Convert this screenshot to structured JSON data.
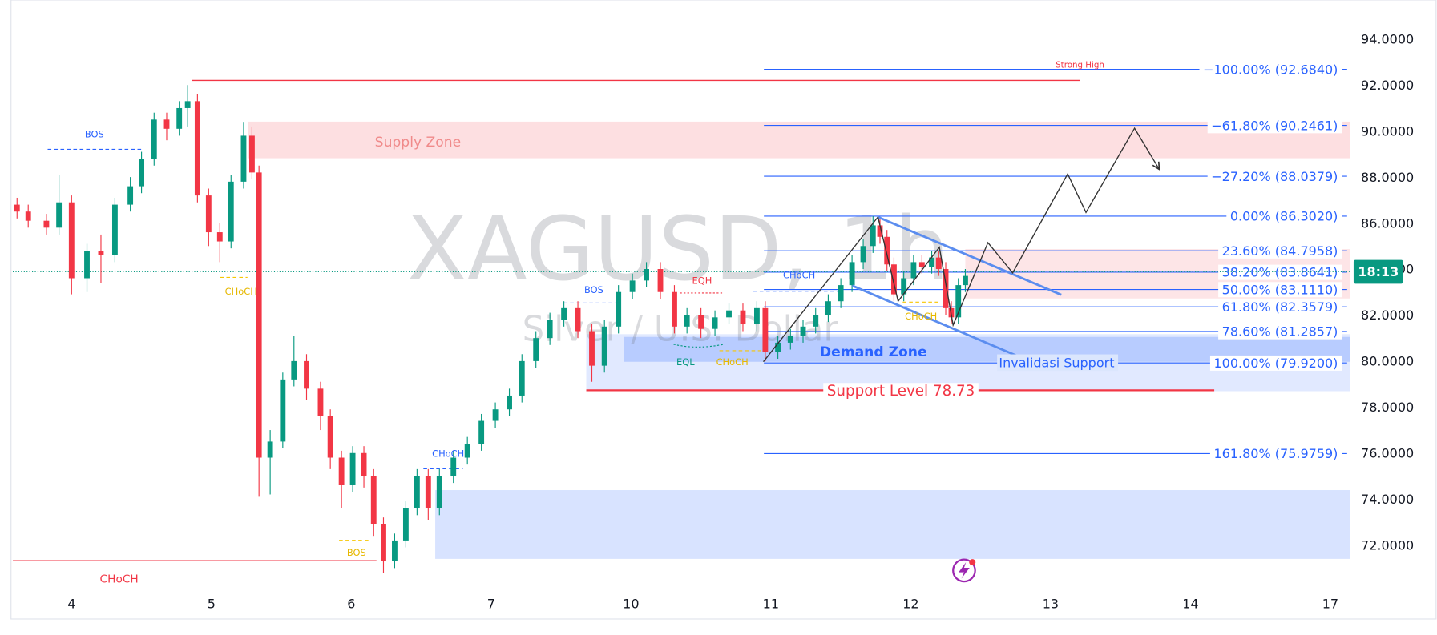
{
  "chart_data": {
    "type": "candlestick",
    "title": "XAGUSD, 1h",
    "subtitle": "Silver / U.S. Dollar",
    "x": [
      -0.39,
      -0.31,
      -0.18,
      -0.09,
      0.0,
      0.11,
      0.21,
      0.31,
      0.42,
      0.5,
      0.59,
      0.68,
      0.77,
      0.83,
      0.9,
      0.98,
      1.06,
      1.14,
      1.23,
      1.29,
      1.34,
      1.42,
      1.51,
      1.59,
      1.68,
      1.78,
      1.85,
      1.93,
      2.01,
      2.09,
      2.16,
      2.23,
      2.31,
      2.39,
      2.47,
      2.55,
      2.63,
      2.73,
      2.83,
      2.93,
      3.03,
      3.13,
      3.22,
      3.32,
      3.42,
      3.52,
      3.62,
      3.72,
      3.81,
      3.91,
      4.01,
      4.11,
      4.21,
      4.31,
      4.4,
      4.5,
      4.6,
      4.7,
      4.8,
      4.9,
      4.96,
      5.05,
      5.14,
      5.23,
      5.32,
      5.41,
      5.5,
      5.58,
      5.66,
      5.73,
      5.78,
      5.83,
      5.88,
      5.95,
      6.02,
      6.08,
      6.15,
      6.2,
      6.25,
      6.29,
      6.34,
      6.39
    ],
    "open": [
      86.8,
      86.5,
      86.1,
      85.8,
      86.9,
      83.6,
      84.8,
      84.6,
      86.8,
      87.6,
      88.8,
      90.5,
      90.1,
      91.0,
      91.3,
      87.2,
      85.6,
      85.2,
      87.8,
      89.8,
      88.2,
      75.8,
      76.5,
      79.2,
      80.0,
      78.8,
      77.6,
      75.8,
      74.6,
      76.0,
      75.0,
      72.9,
      71.3,
      72.2,
      73.6,
      75.0,
      73.6,
      75.0,
      75.8,
      76.4,
      77.4,
      77.9,
      78.5,
      80.0,
      81.0,
      81.8,
      82.3,
      81.3,
      79.8,
      81.5,
      83.0,
      83.5,
      84.0,
      83.0,
      81.5,
      82.0,
      81.4,
      81.9,
      82.2,
      81.6,
      82.3,
      80.4,
      80.8,
      81.1,
      81.5,
      82.0,
      82.6,
      83.3,
      84.3,
      85.0,
      85.9,
      85.4,
      84.2,
      82.9,
      83.6,
      84.3,
      84.1,
      84.5,
      84.0,
      82.3,
      81.9,
      83.3
    ],
    "high": [
      87.1,
      86.8,
      86.4,
      88.1,
      87.2,
      85.1,
      85.5,
      87.1,
      88.0,
      89.1,
      90.8,
      90.8,
      91.3,
      92.0,
      91.6,
      87.5,
      86.0,
      88.1,
      90.4,
      90.2,
      88.5,
      77.0,
      79.5,
      81.1,
      80.3,
      79.1,
      77.9,
      76.1,
      76.3,
      76.3,
      75.3,
      73.2,
      72.5,
      73.9,
      75.3,
      75.3,
      75.3,
      76.1,
      76.7,
      77.7,
      78.2,
      78.8,
      80.3,
      81.3,
      82.1,
      82.6,
      82.6,
      81.6,
      81.8,
      83.3,
      83.8,
      84.3,
      84.3,
      83.3,
      82.3,
      82.3,
      82.2,
      82.5,
      82.5,
      82.6,
      82.6,
      81.1,
      81.4,
      81.8,
      82.3,
      82.9,
      83.6,
      84.6,
      85.3,
      86.3,
      86.2,
      85.7,
      84.5,
      83.9,
      84.6,
      84.6,
      84.8,
      84.8,
      84.3,
      82.6,
      83.6,
      84.0
    ],
    "low": [
      86.2,
      85.8,
      85.5,
      85.5,
      82.9,
      83.0,
      83.4,
      84.3,
      86.5,
      87.3,
      88.5,
      89.6,
      89.8,
      90.2,
      86.9,
      85.0,
      84.3,
      84.9,
      87.5,
      87.9,
      74.1,
      74.2,
      76.2,
      78.9,
      78.3,
      77.0,
      75.3,
      73.6,
      74.3,
      74.5,
      72.4,
      70.8,
      71.0,
      71.9,
      73.3,
      73.1,
      73.3,
      74.7,
      75.5,
      76.1,
      77.1,
      77.6,
      78.2,
      79.7,
      80.7,
      81.5,
      81.0,
      79.1,
      79.5,
      81.2,
      82.7,
      83.2,
      82.7,
      81.2,
      81.2,
      81.0,
      81.1,
      81.6,
      81.3,
      81.3,
      80.0,
      80.1,
      80.5,
      80.8,
      81.2,
      81.7,
      82.3,
      83.0,
      84.0,
      84.7,
      85.1,
      83.9,
      82.6,
      82.6,
      83.3,
      83.8,
      83.8,
      83.7,
      82.0,
      81.6,
      81.6,
      83.0
    ],
    "close": [
      86.5,
      86.1,
      85.8,
      86.9,
      83.6,
      84.8,
      84.6,
      86.8,
      87.6,
      88.8,
      90.5,
      90.1,
      91.0,
      91.3,
      87.2,
      85.6,
      85.2,
      87.8,
      89.8,
      88.2,
      75.8,
      76.5,
      79.2,
      80.0,
      78.8,
      77.6,
      75.8,
      74.6,
      76.0,
      75.0,
      72.9,
      71.3,
      72.2,
      73.6,
      75.0,
      73.6,
      75.0,
      75.8,
      76.4,
      77.4,
      77.9,
      78.5,
      80.0,
      81.0,
      81.8,
      82.3,
      81.3,
      79.8,
      81.5,
      83.0,
      83.5,
      84.0,
      83.0,
      81.5,
      82.0,
      81.4,
      81.9,
      82.2,
      81.6,
      82.3,
      80.4,
      80.8,
      81.1,
      81.5,
      82.0,
      82.6,
      83.3,
      84.3,
      85.0,
      85.9,
      85.4,
      84.2,
      82.9,
      83.6,
      84.3,
      84.1,
      84.5,
      84.0,
      82.3,
      81.9,
      83.3,
      83.7
    ],
    "up_color": "#089981",
    "down_color": "#f23645",
    "xlim": [
      -0.42,
      9.14
    ],
    "xticks": [
      {
        "value": 0,
        "label": "4"
      },
      {
        "value": 1,
        "label": "5"
      },
      {
        "value": 2,
        "label": "6"
      },
      {
        "value": 3,
        "label": "7"
      },
      {
        "value": 4,
        "label": "10"
      },
      {
        "value": 5,
        "label": "11"
      },
      {
        "value": 6,
        "label": "12"
      },
      {
        "value": 7,
        "label": "13"
      },
      {
        "value": 8,
        "label": "14"
      },
      {
        "value": 9,
        "label": "17"
      }
    ],
    "ylim": [
      69.9,
      95.5
    ],
    "yticks": [
      {
        "value": 72,
        "label": "72.0000"
      },
      {
        "value": 74,
        "label": "74.0000"
      },
      {
        "value": 76,
        "label": "76.0000"
      },
      {
        "value": 78,
        "label": "78.0000"
      },
      {
        "value": 80,
        "label": "80.0000"
      },
      {
        "value": 82,
        "label": "82.0000"
      },
      {
        "value": 84,
        "label": "84.0000"
      },
      {
        "value": 86,
        "label": "86.0000"
      },
      {
        "value": 88,
        "label": "88.0000"
      },
      {
        "value": 90,
        "label": "90.0000"
      },
      {
        "value": 92,
        "label": "92.0000"
      },
      {
        "value": 94,
        "label": "94.0000"
      }
    ],
    "last_price": {
      "value": 83.88,
      "label": "18:13",
      "color": "#089981"
    },
    "fib": {
      "color": "#2962ff",
      "x": [
        4.95,
        9.12
      ],
      "levels": [
        {
          "value": 92.684,
          "label": "−100.00% (92.6840)"
        },
        {
          "value": 90.2461,
          "label": "−61.80% (90.2461)"
        },
        {
          "value": 88.0379,
          "label": "−27.20% (88.0379)"
        },
        {
          "value": 86.302,
          "label": "0.00% (86.3020)"
        },
        {
          "value": 84.7958,
          "label": "23.60% (84.7958)"
        },
        {
          "value": 83.8641,
          "label": "38.20% (83.8641)"
        },
        {
          "value": 83.111,
          "label": "50.00% (83.1110)"
        },
        {
          "value": 82.3579,
          "label": "61.80% (82.3579)"
        },
        {
          "value": 81.2857,
          "label": "78.60% (81.2857)"
        },
        {
          "value": 79.92,
          "label": "100.00% (79.9200)"
        },
        {
          "value": 75.9759,
          "label": "161.80% (75.9759)"
        }
      ]
    },
    "zones": [
      {
        "name": "Supply Zone",
        "x": [
          1.26,
          9.14
        ],
        "y": [
          88.82,
          90.41
        ],
        "color": "rgba(242,54,69,0.16)"
      },
      {
        "x": [
          6.39,
          9.14
        ],
        "y": [
          82.72,
          84.87
        ],
        "color": "rgba(242,54,69,0.13)"
      },
      {
        "x": [
          3.68,
          9.14
        ],
        "y": [
          78.69,
          81.17
        ],
        "color": "rgba(41,98,255,0.14)"
      },
      {
        "name": "Demand Zone",
        "x": [
          3.95,
          9.14
        ],
        "y": [
          79.97,
          81.05
        ],
        "color": "rgba(41,98,255,0.22)"
      },
      {
        "x": [
          2.6,
          9.14
        ],
        "y": [
          71.4,
          74.39
        ],
        "color": "rgba(41,98,255,0.18)"
      }
    ],
    "lines": [
      {
        "label": "Strong High",
        "value": 92.2,
        "x": [
          0.86,
          7.21
        ],
        "color": "#f23645"
      },
      {
        "label": "CHoCH",
        "value": 71.32,
        "x": [
          -0.42,
          2.18
        ],
        "color": "#f23645"
      },
      {
        "label": "Support Level 78.73",
        "value": 78.73,
        "x": [
          3.68,
          8.17
        ],
        "color": "#f23645"
      }
    ],
    "annotations": [
      "BOS",
      "CHoCH",
      "BOS",
      "CHoCH",
      "BOS",
      "EQH",
      "EQL",
      "CHoCH",
      "CHoCH",
      "CHoCH",
      "Invalidasi Support"
    ]
  }
}
